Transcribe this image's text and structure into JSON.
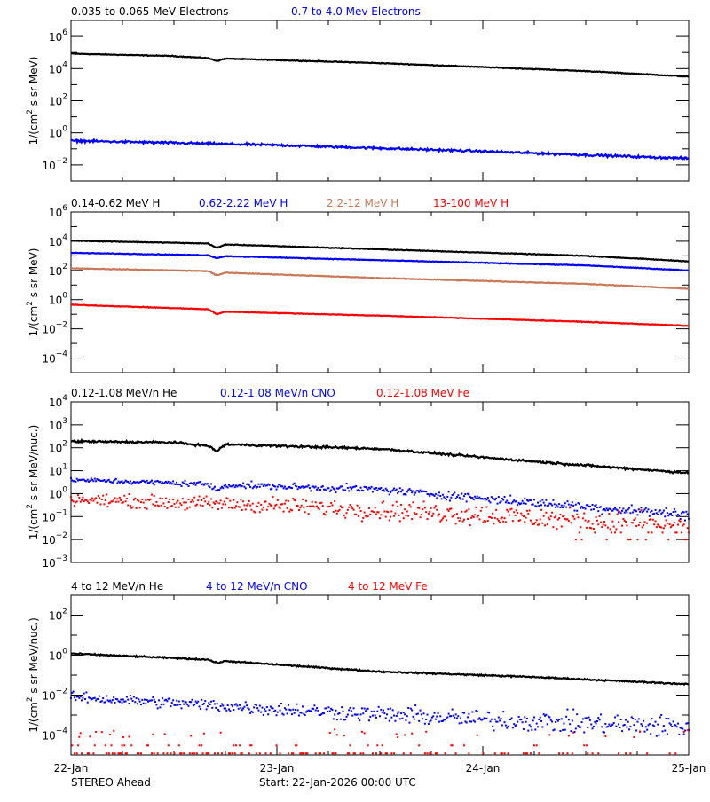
{
  "chart_data": [
    {
      "type": "line",
      "ylabel": "1/(cm² s sr MeV)",
      "ylabel_parts": [
        "1/(cm",
        "2",
        " s sr MeV)"
      ],
      "yscale": "log",
      "ylim": [
        0.001,
        10000000
      ],
      "ytick_exponents": [
        6,
        4,
        2,
        0,
        -2
      ],
      "legend": [
        {
          "name": "0.035 to 0.065 MeV Electrons",
          "color": "#000000"
        },
        {
          "name": "0.7 to 4.0 Mev Electrons",
          "color": "#0000ff"
        }
      ],
      "series": [
        {
          "name": "0.035 to 0.065 MeV Electrons",
          "color": "#000000",
          "style": "line",
          "noise": 0.02,
          "knots_hours": [
            0,
            12,
            16,
            17,
            18,
            36,
            60,
            72
          ],
          "values": [
            85000,
            60000,
            45000,
            30000,
            42000,
            22000,
            7000,
            3200
          ]
        },
        {
          "name": "0.7 to 4.0 Mev Electrons",
          "color": "#0000ff",
          "style": "line",
          "noise": 0.06,
          "knots_hours": [
            0,
            24,
            48,
            72
          ],
          "values": [
            0.32,
            0.17,
            0.07,
            0.025
          ]
        }
      ]
    },
    {
      "type": "line",
      "ylabel": "1/(cm² s sr MeV)",
      "ylabel_parts": [
        "1/(cm",
        "2",
        " s sr MeV)"
      ],
      "yscale": "log",
      "ylim": [
        1e-05,
        1000000
      ],
      "ytick_exponents": [
        6,
        4,
        2,
        0,
        -2,
        -4
      ],
      "legend": [
        {
          "name": "0.14-0.62 MeV H",
          "color": "#000000"
        },
        {
          "name": "0.62-2.22 MeV H",
          "color": "#0000ff"
        },
        {
          "name": "2.2-12 MeV H",
          "color": "#c87858"
        },
        {
          "name": "13-100 MeV H",
          "color": "#ff0000"
        }
      ],
      "series": [
        {
          "name": "0.14-0.62 MeV H",
          "color": "#000000",
          "style": "line",
          "noise": 0.02,
          "knots_hours": [
            0,
            16,
            17,
            18,
            36,
            60,
            72
          ],
          "values": [
            11000,
            7000,
            3500,
            6000,
            2800,
            1000,
            420
          ]
        },
        {
          "name": "0.62-2.22 MeV H",
          "color": "#0000ff",
          "style": "line",
          "noise": 0.02,
          "knots_hours": [
            0,
            16,
            17,
            18,
            36,
            60,
            72
          ],
          "values": [
            1600,
            1100,
            700,
            950,
            500,
            220,
            100
          ]
        },
        {
          "name": "2.2-12 MeV H",
          "color": "#c87858",
          "style": "line",
          "noise": 0.02,
          "knots_hours": [
            0,
            16,
            17,
            18,
            36,
            60,
            72
          ],
          "values": [
            140,
            90,
            45,
            70,
            30,
            12,
            5.5
          ]
        },
        {
          "name": "13-100 MeV H",
          "color": "#ff0000",
          "style": "line",
          "noise": 0.02,
          "knots_hours": [
            0,
            16,
            17,
            18,
            36,
            60,
            72
          ],
          "values": [
            0.45,
            0.22,
            0.1,
            0.15,
            0.08,
            0.03,
            0.016
          ]
        }
      ]
    },
    {
      "type": "line",
      "ylabel": "1/(cm² s sr MeV/nuc.)",
      "ylabel_parts": [
        "1/(cm",
        "2",
        " s sr MeV/nuc.)"
      ],
      "yscale": "log",
      "ylim": [
        0.001,
        10000
      ],
      "ytick_exponents": [
        4,
        3,
        2,
        1,
        0,
        -1,
        -2,
        -3
      ],
      "legend": [
        {
          "name": "0.12-1.08 MeV/n He",
          "color": "#000000"
        },
        {
          "name": "0.12-1.08 MeV/n CNO",
          "color": "#0000ff"
        },
        {
          "name": "0.12-1.08 MeV Fe",
          "color": "#ff0000"
        }
      ],
      "series": [
        {
          "name": "0.12-1.08 MeV/n He",
          "color": "#000000",
          "style": "line",
          "noise": 0.04,
          "knots_hours": [
            0,
            12,
            16,
            17,
            18,
            36,
            54,
            72
          ],
          "values": [
            190,
            170,
            120,
            70,
            140,
            90,
            25,
            8
          ]
        },
        {
          "name": "0.12-1.08 MeV/n CNO",
          "color": "#0000ff",
          "style": "points",
          "noise": 0.08,
          "knots_hours": [
            0,
            16,
            17,
            18,
            36,
            54,
            72
          ],
          "values": [
            4,
            2.6,
            1.3,
            2.4,
            1.5,
            0.4,
            0.12
          ]
        },
        {
          "name": "0.12-1.08 MeV Fe",
          "color": "#ff0000",
          "style": "points",
          "noise": 0.2,
          "knots_hours": [
            0,
            24,
            48,
            72
          ],
          "values": [
            0.55,
            0.3,
            0.12,
            0.03
          ],
          "floor_levels": [
            0.02,
            0.01
          ]
        }
      ]
    },
    {
      "type": "line",
      "ylabel": "1/(cm² s sr MeV/nuc.)",
      "ylabel_parts": [
        "1/(cm",
        "2",
        " s sr MeV/nuc.)"
      ],
      "yscale": "log",
      "ylim": [
        1e-05,
        1000
      ],
      "ytick_exponents": [
        2,
        0,
        -2,
        -4
      ],
      "legend": [
        {
          "name": "4 to 12 MeV/n He",
          "color": "#000000"
        },
        {
          "name": "4 to 12 MeV/n CNO",
          "color": "#0000ff"
        },
        {
          "name": "4 to 12 MeV Fe",
          "color": "#ff0000"
        }
      ],
      "series": [
        {
          "name": "4 to 12 MeV/n He",
          "color": "#000000",
          "style": "line",
          "noise": 0.03,
          "knots_hours": [
            0,
            16,
            17,
            18,
            36,
            54,
            72
          ],
          "values": [
            1.2,
            0.6,
            0.4,
            0.5,
            0.15,
            0.08,
            0.035
          ]
        },
        {
          "name": "4 to 12 MeV/n CNO",
          "color": "#0000ff",
          "style": "points",
          "noise": 0.2,
          "knots_hours": [
            0,
            24,
            48,
            72
          ],
          "values": [
            0.008,
            0.002,
            0.0006,
            0.00025
          ]
        },
        {
          "name": "4 to 12 MeV Fe",
          "color": "#ff0000",
          "style": "sparse",
          "noise": 0,
          "knots_hours": [
            0,
            72
          ],
          "values": [
            0.0001,
            0.0001
          ],
          "floor_levels": [
            0.0001,
            3e-05,
            1.2e-05
          ]
        }
      ]
    }
  ],
  "xaxis": {
    "start": "22-Jan-2026 00:00",
    "end": "25-Jan-2026 00:00",
    "tick_labels": [
      "22-Jan",
      "23-Jan",
      "24-Jan",
      "25-Jan"
    ],
    "minor_tick_hours": 6
  },
  "footer": {
    "spacecraft": "STEREO Ahead",
    "start_label": "Start: 22-Jan-2026 00:00 UTC"
  }
}
